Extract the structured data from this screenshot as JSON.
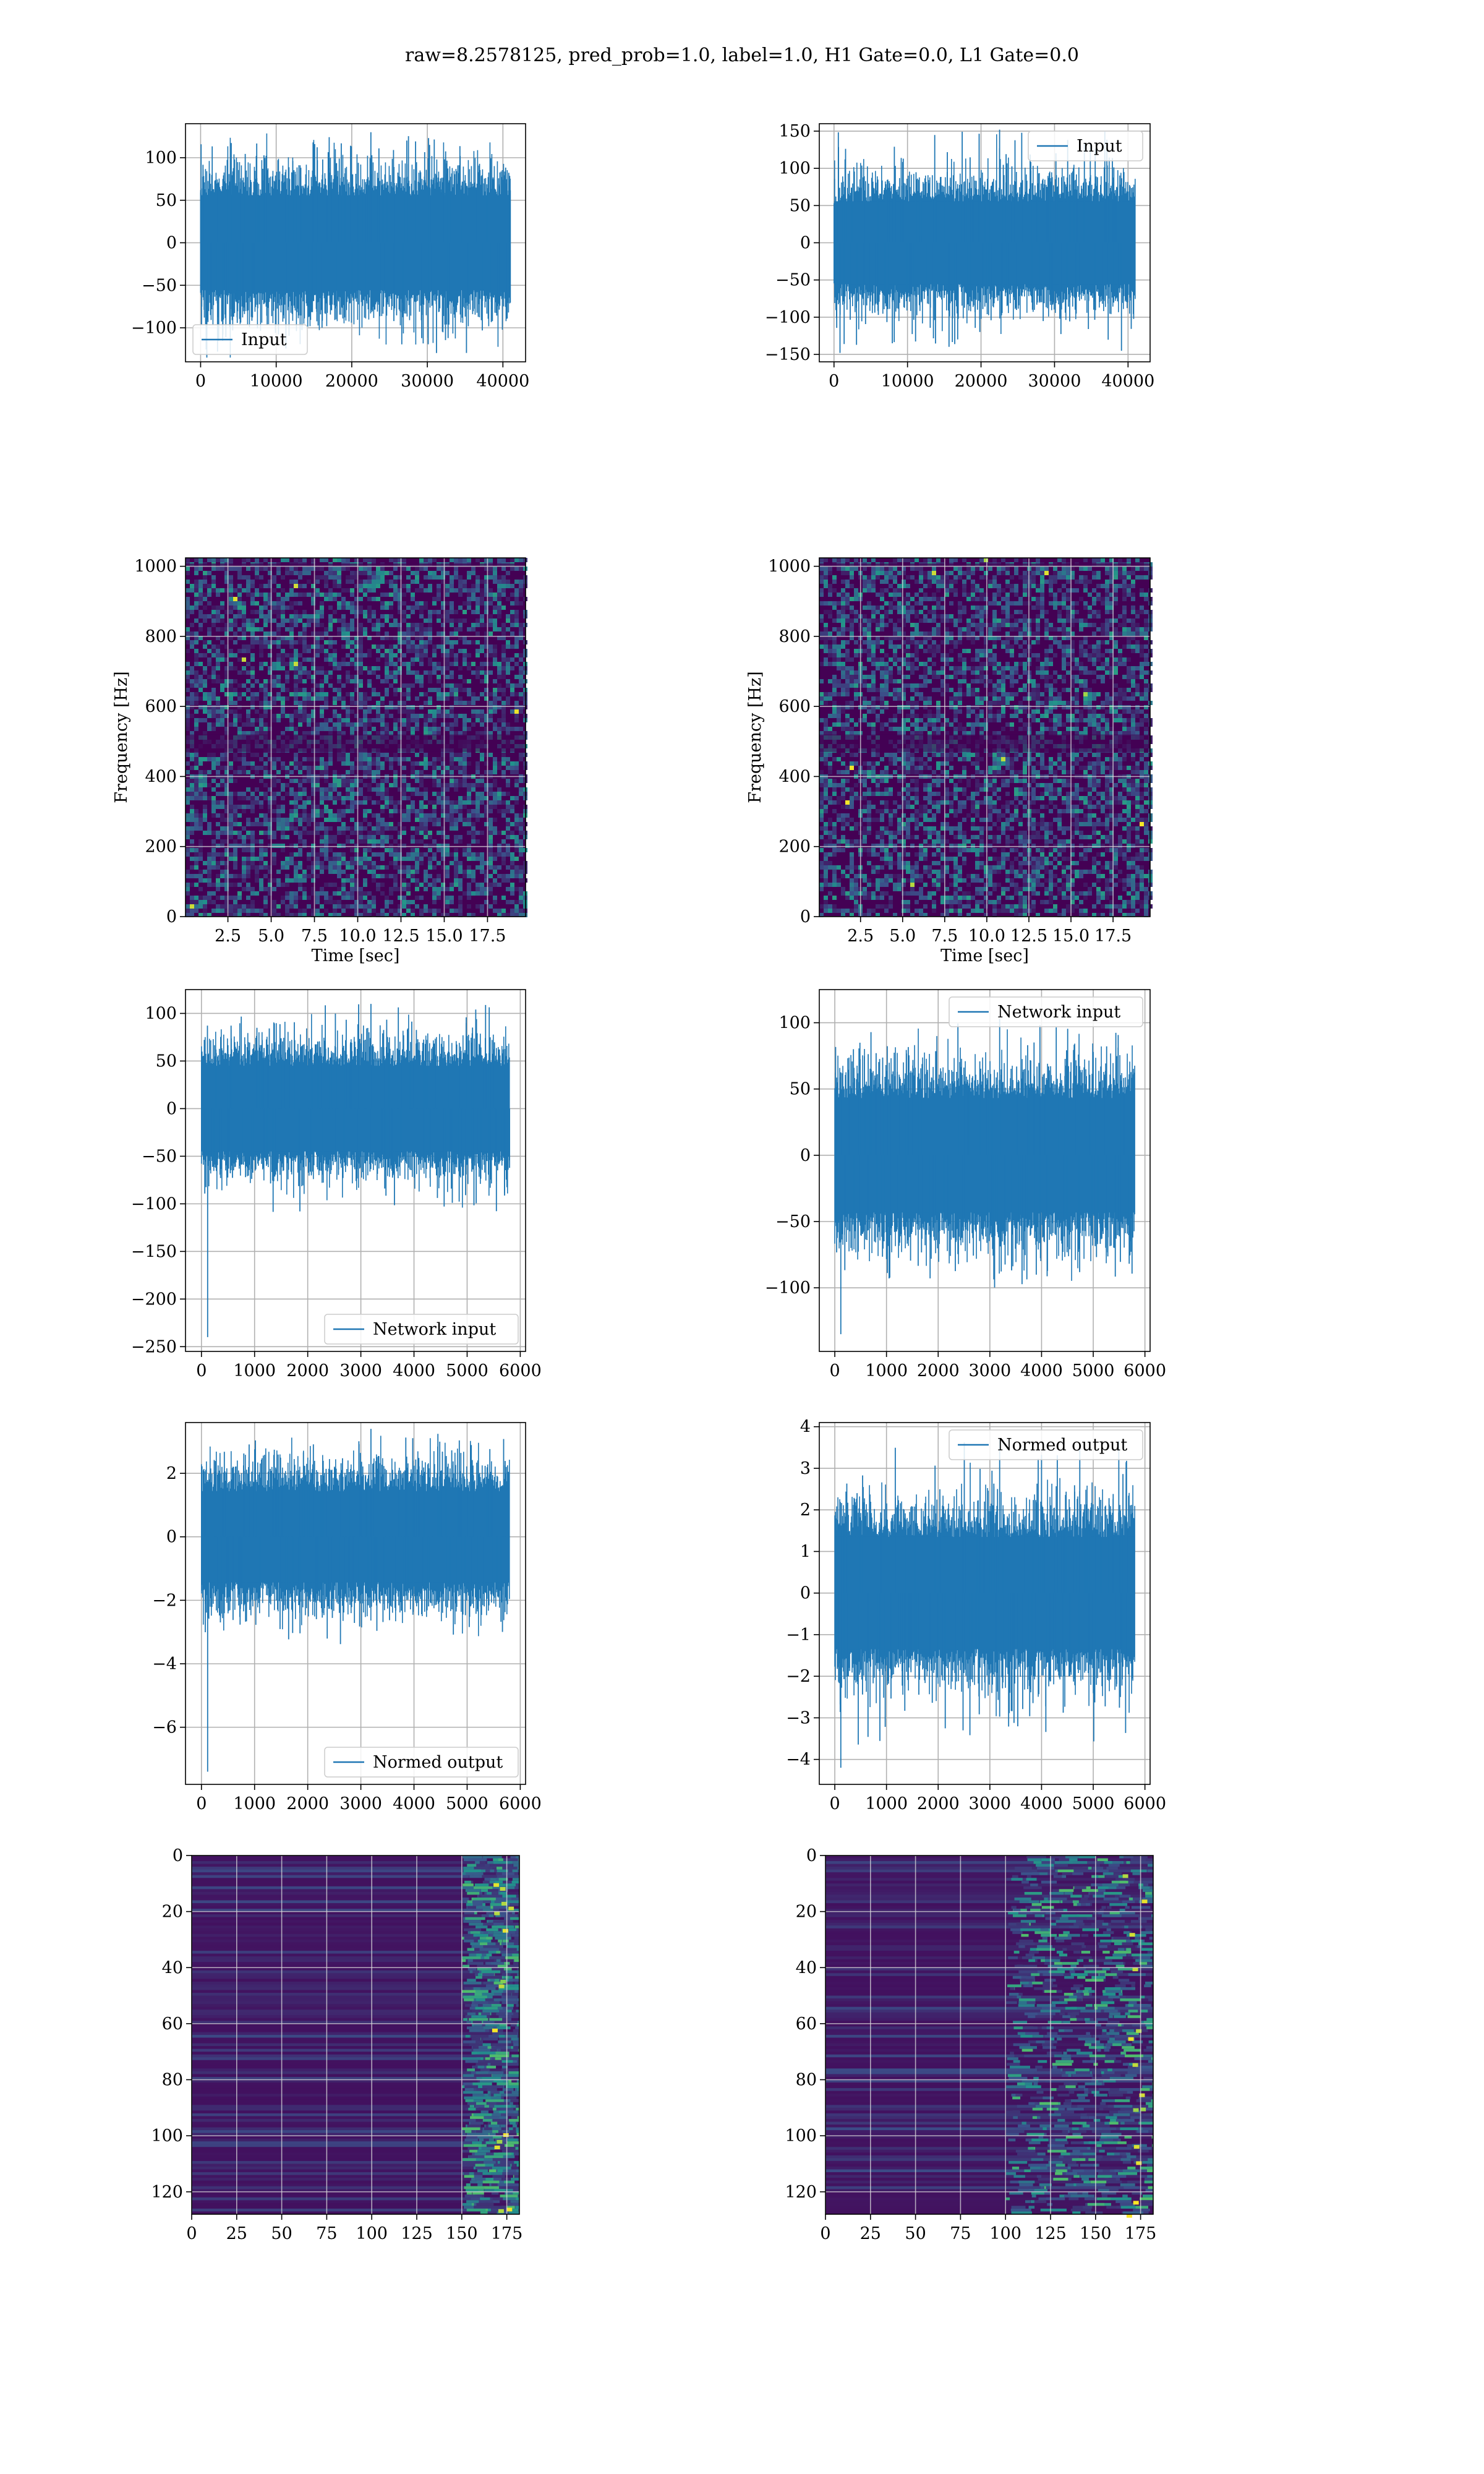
{
  "figure": {
    "title": "raw=8.2578125, pred_prob=1.0, label=1.0, H1 Gate=0.0, L1 Gate=0.0"
  },
  "colors": {
    "line": "#1f77b4",
    "grid": "#b0b0b0",
    "heat_low": "#440154",
    "heat_mid": "#21918c",
    "heat_high": "#fde725"
  },
  "chart_data": [
    {
      "id": "p1",
      "type": "line",
      "xlabel": "",
      "ylabel": "",
      "xlim": [
        -2000,
        43000
      ],
      "ylim": [
        -140,
        140
      ],
      "xticks": [
        0,
        10000,
        20000,
        30000,
        40000
      ],
      "yticks": [
        -100,
        -50,
        0,
        50,
        100
      ],
      "series": [
        {
          "name": "Input",
          "x_range": [
            0,
            40960
          ],
          "n": 40960,
          "core_amp": 62,
          "spike_amp": 130,
          "min": -135,
          "max": 130
        }
      ],
      "legend": "lower-left",
      "grid": true
    },
    {
      "id": "p2",
      "type": "line",
      "xlabel": "",
      "ylabel": "",
      "xlim": [
        -2000,
        43000
      ],
      "ylim": [
        -160,
        160
      ],
      "xticks": [
        0,
        10000,
        20000,
        30000,
        40000
      ],
      "yticks": [
        -150,
        -100,
        -50,
        0,
        50,
        100,
        150
      ],
      "series": [
        {
          "name": "Input",
          "x_range": [
            0,
            40960
          ],
          "n": 40960,
          "core_amp": 62,
          "spike_amp": 150,
          "min": -148,
          "max": 152
        }
      ],
      "legend": "upper-right",
      "grid": true
    },
    {
      "id": "p3",
      "type": "heatmap",
      "xlabel": "Time [sec]",
      "ylabel": "Frequency [Hz]",
      "xlim": [
        0.05,
        19.7
      ],
      "ylim": [
        0,
        1024
      ],
      "xticks": [
        2.5,
        5.0,
        7.5,
        10.0,
        12.5,
        15.0,
        17.5
      ],
      "xticklabels": [
        "2.5",
        "5.0",
        "7.5",
        "10.0",
        "12.5",
        "15.0",
        "17.5"
      ],
      "yticks": [
        0,
        200,
        400,
        600,
        800,
        1000
      ],
      "colormap": "viridis",
      "grid": true
    },
    {
      "id": "p4",
      "type": "heatmap",
      "xlabel": "Time [sec]",
      "ylabel": "Frequency [Hz]",
      "xlim": [
        0.05,
        19.7
      ],
      "ylim": [
        0,
        1024
      ],
      "xticks": [
        2.5,
        5.0,
        7.5,
        10.0,
        12.5,
        15.0,
        17.5
      ],
      "xticklabels": [
        "2.5",
        "5.0",
        "7.5",
        "10.0",
        "12.5",
        "15.0",
        "17.5"
      ],
      "yticks": [
        0,
        200,
        400,
        600,
        800,
        1000
      ],
      "colormap": "viridis",
      "grid": true
    },
    {
      "id": "p5",
      "type": "line",
      "xlabel": "",
      "ylabel": "",
      "xlim": [
        -300,
        6100
      ],
      "ylim": [
        -255,
        125
      ],
      "xticks": [
        0,
        1000,
        2000,
        3000,
        4000,
        5000,
        6000
      ],
      "yticks": [
        -250,
        -200,
        -150,
        -100,
        -50,
        0,
        50,
        100
      ],
      "series": [
        {
          "name": "Network input",
          "x_range": [
            0,
            5800
          ],
          "n": 5800,
          "core_amp": 50,
          "spike_amp": 110,
          "min": -240,
          "max": 110
        }
      ],
      "legend": "lower-right",
      "grid": true
    },
    {
      "id": "p6",
      "type": "line",
      "xlabel": "",
      "ylabel": "",
      "xlim": [
        -300,
        6100
      ],
      "ylim": [
        -148,
        125
      ],
      "xticks": [
        0,
        1000,
        2000,
        3000,
        4000,
        5000,
        6000
      ],
      "yticks": [
        -100,
        -50,
        0,
        50,
        100
      ],
      "series": [
        {
          "name": "Network input",
          "x_range": [
            0,
            5800
          ],
          "n": 5800,
          "core_amp": 48,
          "spike_amp": 100,
          "min": -135,
          "max": 103
        }
      ],
      "legend": "upper-right",
      "grid": true
    },
    {
      "id": "p7",
      "type": "line",
      "xlabel": "",
      "ylabel": "",
      "xlim": [
        -300,
        6100
      ],
      "ylim": [
        -7.8,
        3.6
      ],
      "xticks": [
        0,
        1000,
        2000,
        3000,
        4000,
        5000,
        6000
      ],
      "yticks": [
        -6,
        -4,
        -2,
        0,
        2
      ],
      "series": [
        {
          "name": "Normed output",
          "x_range": [
            0,
            5800
          ],
          "n": 5800,
          "core_amp": 1.6,
          "spike_amp": 3.4,
          "min": -7.4,
          "max": 3.4
        }
      ],
      "legend": "lower-right",
      "grid": true
    },
    {
      "id": "p8",
      "type": "line",
      "xlabel": "",
      "ylabel": "",
      "xlim": [
        -300,
        6100
      ],
      "ylim": [
        -4.6,
        4.1
      ],
      "xticks": [
        0,
        1000,
        2000,
        3000,
        4000,
        5000,
        6000
      ],
      "yticks": [
        -4,
        -3,
        -2,
        -1,
        0,
        1,
        2,
        3,
        4
      ],
      "series": [
        {
          "name": "Normed output",
          "x_range": [
            0,
            5800
          ],
          "n": 5800,
          "core_amp": 1.5,
          "spike_amp": 3.7,
          "min": -4.2,
          "max": 3.7
        }
      ],
      "legend": "upper-right",
      "grid": true
    },
    {
      "id": "p9",
      "type": "heatmap",
      "xlabel": "",
      "ylabel": "",
      "xlim": [
        0,
        182
      ],
      "ylim": [
        128,
        0
      ],
      "xticks": [
        0,
        25,
        50,
        75,
        100,
        125,
        150,
        175
      ],
      "xticklabels": [
        "0",
        "25",
        "50",
        "75",
        "100",
        "125",
        "150",
        "175"
      ],
      "yticks": [
        0,
        20,
        40,
        60,
        80,
        100,
        120
      ],
      "colormap": "viridis",
      "grid": true,
      "active_from": 150
    },
    {
      "id": "p10",
      "type": "heatmap",
      "xlabel": "",
      "ylabel": "",
      "xlim": [
        0,
        182
      ],
      "ylim": [
        128,
        0
      ],
      "xticks": [
        0,
        25,
        50,
        75,
        100,
        125,
        150,
        175
      ],
      "xticklabels": [
        "0",
        "25",
        "50",
        "75",
        "100",
        "125",
        "150",
        "175"
      ],
      "yticks": [
        0,
        20,
        40,
        60,
        80,
        100,
        120
      ],
      "colormap": "viridis",
      "grid": true,
      "active_from": 100
    }
  ]
}
